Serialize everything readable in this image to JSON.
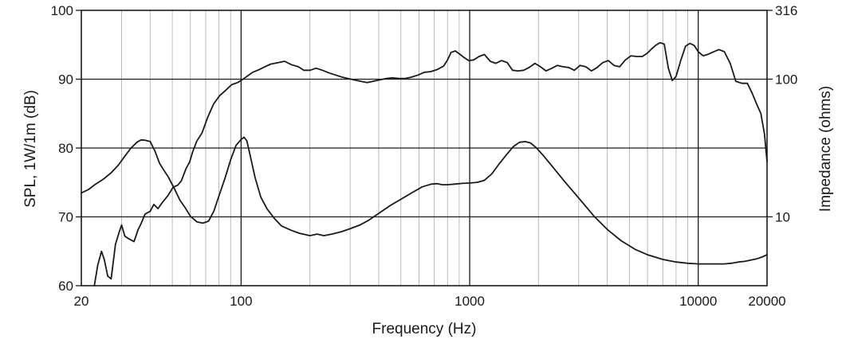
{
  "chart_data": {
    "type": "line",
    "title": "",
    "xlabel": "Frequency (Hz)",
    "ylabel": "SPL, 1W/1m (dB)",
    "y2label": "Impedance (ohms)",
    "x_scale": "log",
    "xlim": [
      20,
      20000
    ],
    "ylim": [
      60,
      100
    ],
    "y2_scale": "log",
    "y2lim": [
      3.16,
      316
    ],
    "grid": true,
    "x_tick_labels": [
      {
        "value": 20,
        "label": "20"
      },
      {
        "value": 100,
        "label": "100"
      },
      {
        "value": 1000,
        "label": "1000"
      },
      {
        "value": 10000,
        "label": "10000"
      },
      {
        "value": 20000,
        "label": "20000"
      }
    ],
    "y_tick_labels": [
      {
        "value": 60,
        "label": "60"
      },
      {
        "value": 70,
        "label": "70"
      },
      {
        "value": 80,
        "label": "80"
      },
      {
        "value": 90,
        "label": "90"
      },
      {
        "value": 100,
        "label": "100"
      }
    ],
    "y2_tick_labels": [
      {
        "value": 10,
        "label": "10"
      },
      {
        "value": 100,
        "label": "100"
      },
      {
        "value": 316,
        "label": "316"
      }
    ],
    "series": [
      {
        "axis": "left",
        "color": "#1a1a1a",
        "x": [
          22.8,
          23.6,
          24.5,
          25.2,
          26.1,
          27,
          28.2,
          29.3,
          30,
          31,
          32.3,
          34,
          35.5,
          36.5,
          38,
          40,
          41.5,
          43.3,
          45,
          47.6,
          50.4,
          52.8,
          54.7,
          57.4,
          59.6,
          61.5,
          64,
          67.5,
          71.3,
          75.8,
          80.5,
          85.7,
          91,
          96.4,
          100,
          106,
          112.5,
          120,
          127,
          135,
          145,
          155,
          166,
          178,
          188,
          200,
          213,
          227,
          243,
          259,
          276,
          293,
          312,
          333,
          356,
          379,
          404,
          432,
          460,
          490,
          523,
          557,
          594,
          634,
          676,
          721,
          769,
          800,
          830,
          865,
          900,
          940,
          990,
          1040,
          1100,
          1160,
          1230,
          1300,
          1380,
          1460,
          1540,
          1630,
          1720,
          1820,
          1930,
          2040,
          2160,
          2290,
          2420,
          2560,
          2710,
          2870,
          3040,
          3220,
          3410,
          3610,
          3820,
          4040,
          4280,
          4530,
          4800,
          5080,
          5380,
          5690,
          6000,
          6250,
          6500,
          6800,
          7100,
          7400,
          7700,
          8000,
          8400,
          8800,
          9200,
          9600,
          10000,
          10500,
          11000,
          11700,
          12300,
          13000,
          13800,
          14600,
          15500,
          16400,
          17200,
          18000,
          18800,
          19500,
          20000
        ],
        "values": [
          60,
          63,
          65,
          63.8,
          61.4,
          61,
          66,
          67.8,
          68.8,
          67.2,
          66.8,
          66.4,
          68.2,
          69,
          70.4,
          70.8,
          71.8,
          71.2,
          72,
          73,
          74.3,
          74.6,
          75.2,
          77,
          78,
          79.5,
          81,
          82.2,
          84.4,
          86.4,
          87.6,
          88.4,
          89.2,
          89.5,
          89.8,
          90.4,
          91,
          91.4,
          91.8,
          92.2,
          92.4,
          92.6,
          92.1,
          91.8,
          91.3,
          91.3,
          91.6,
          91.3,
          90.9,
          90.6,
          90.3,
          90.1,
          89.9,
          89.7,
          89.5,
          89.7,
          89.9,
          90.1,
          90.2,
          90.1,
          90.1,
          90.3,
          90.6,
          91,
          91.1,
          91.4,
          91.9,
          92.8,
          93.9,
          94.1,
          93.7,
          93.2,
          92.7,
          92.8,
          93.3,
          93.6,
          92.6,
          92.3,
          92.7,
          92.4,
          91.3,
          91.2,
          91.3,
          91.7,
          92.3,
          91.8,
          91.2,
          91.6,
          92,
          91.8,
          91.7,
          91.3,
          92,
          91.8,
          91.2,
          91.7,
          92.4,
          92.7,
          92,
          91.8,
          92.8,
          93.4,
          93.3,
          93.3,
          93.8,
          94.4,
          94.9,
          95.3,
          95.1,
          91.6,
          89.8,
          90.4,
          92.8,
          94.8,
          95.2,
          94.9,
          94,
          93.4,
          93.6,
          94,
          94.3,
          94,
          92.3,
          89.7,
          89.4,
          89.4,
          88,
          86.4,
          85,
          82,
          78
        ]
      },
      {
        "axis": "right",
        "color": "#1a1a1a",
        "x": [
          20,
          21.5,
          23,
          25,
          27,
          29,
          31,
          33,
          35,
          36.5,
          38,
          40,
          42,
          44,
          46,
          48,
          51,
          54,
          57,
          60,
          64,
          68,
          72,
          76,
          80,
          85,
          90,
          95,
          100,
          103,
          106,
          110,
          115,
          122,
          130,
          140,
          150,
          165,
          180,
          200,
          215,
          230,
          250,
          275,
          300,
          330,
          360,
          400,
          450,
          500,
          560,
          620,
          680,
          720,
          760,
          800,
          860,
          930,
          1000,
          1080,
          1160,
          1250,
          1350,
          1450,
          1550,
          1650,
          1750,
          1850,
          1950,
          2100,
          2300,
          2600,
          3000,
          3500,
          4000,
          4600,
          5300,
          6000,
          7000,
          8000,
          9000,
          10000,
          11000,
          12000,
          13000,
          14000,
          15000,
          16000,
          17000,
          18000,
          19000,
          20000
        ],
        "values": [
          14.9,
          15.8,
          17.2,
          18.8,
          20.9,
          23.7,
          27.6,
          31.6,
          34.8,
          36.2,
          36,
          35.3,
          30,
          24.4,
          21.7,
          19.5,
          16.1,
          13.2,
          11.6,
          10.1,
          9.2,
          9,
          9.3,
          11,
          14.2,
          19,
          26,
          33,
          36.5,
          37.8,
          35.6,
          27.2,
          19.4,
          13.9,
          11.4,
          9.7,
          8.6,
          8,
          7.6,
          7.3,
          7.5,
          7.3,
          7.5,
          7.8,
          8.2,
          8.7,
          9.4,
          10.6,
          12.1,
          13.4,
          15,
          16.5,
          17.3,
          17.4,
          17.1,
          17.1,
          17.3,
          17.5,
          17.6,
          17.8,
          18.4,
          20.5,
          24.4,
          28.3,
          32.3,
          34.8,
          35.2,
          34.3,
          31.9,
          27.9,
          23.2,
          18.1,
          13.7,
          10.1,
          8.1,
          6.7,
          5.8,
          5.3,
          4.9,
          4.7,
          4.6,
          4.55,
          4.55,
          4.55,
          4.55,
          4.6,
          4.7,
          4.75,
          4.85,
          4.95,
          5.1,
          5.3
        ]
      }
    ]
  }
}
